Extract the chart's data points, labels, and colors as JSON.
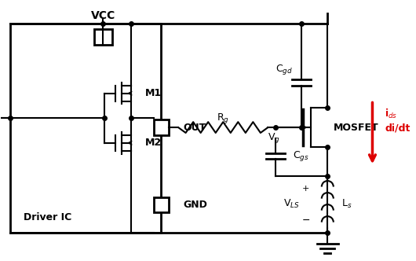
{
  "bg_color": "#ffffff",
  "line_color": "#000000",
  "red_color": "#dd0000",
  "figsize": [
    5.3,
    3.32
  ],
  "dpi": 100,
  "vcc_label": "VCC",
  "gnd_label": "GND",
  "out_label": "OUT",
  "m1_label": "M1",
  "m2_label": "M2",
  "driver_label": "Driver IC",
  "rg_label": "R$_g$",
  "vg_label": "V$_g$",
  "mosfet_label": "MOSFET",
  "cgd_label": "C$_{gd}$",
  "cgs_label": "C$_{gs}$",
  "vls_label": "V$_{LS}$",
  "ls_label": "L$_s$",
  "ids_label": "i$_{ds}$",
  "didt_label": "di/dt"
}
